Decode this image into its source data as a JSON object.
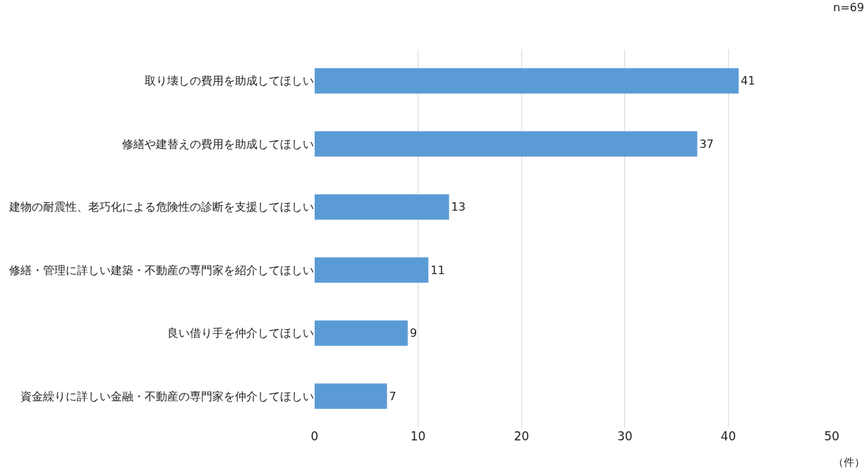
{
  "chart_data": {
    "type": "bar",
    "orientation": "horizontal",
    "categories": [
      "取り壊しの費用を助成してほしい",
      "修繕や建替えの費用を助成してほしい",
      "建物の耐震性、老巧化による危険性の診断を支援してほしい",
      "修繕・管理に詳しい建築・不動産の専門家を紹介してほしい",
      "良い借り手を仲介してほしい",
      "資金繰りに詳しい金融・不動産の専門家を仲介してほしい"
    ],
    "values": [
      41,
      37,
      13,
      11,
      9,
      7
    ],
    "color": "#5b9bd5",
    "xlim": [
      0,
      50
    ],
    "xticks": [
      0,
      10,
      20,
      30,
      40,
      50
    ],
    "xlabel": "（件）",
    "annotations": [
      "n=69"
    ],
    "grid": "x",
    "data_labels": true,
    "legend": false
  }
}
